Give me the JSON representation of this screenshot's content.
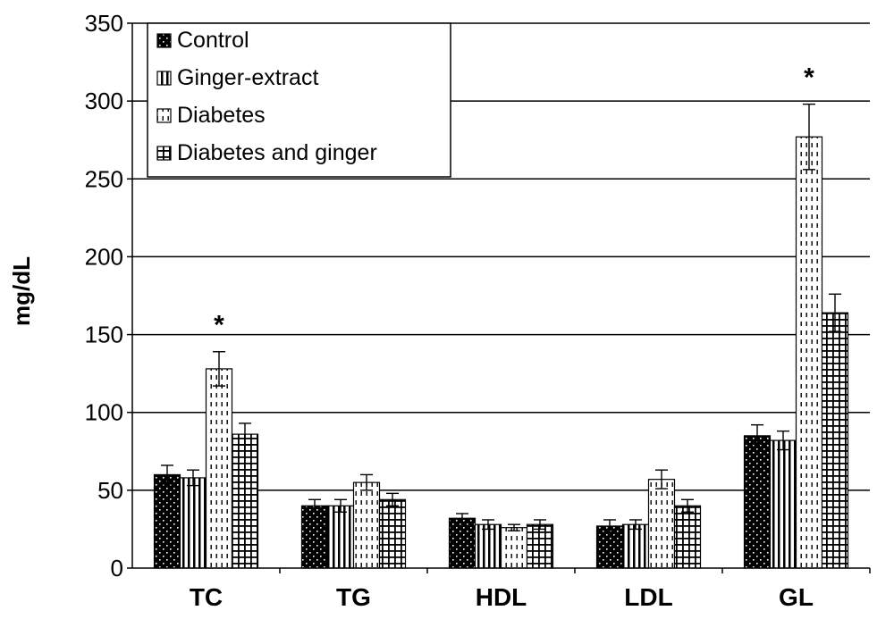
{
  "chart_data": {
    "type": "bar",
    "title": "",
    "xlabel": "",
    "ylabel": "mg/dL",
    "ylim": [
      0,
      350
    ],
    "yticks": [
      0,
      50,
      100,
      150,
      200,
      250,
      300,
      350
    ],
    "grid": true,
    "legend_position": "top-left",
    "categories": [
      "TC",
      "TG",
      "HDL",
      "LDL",
      "GL"
    ],
    "series": [
      {
        "name": "Control",
        "pattern": "dots-on-black",
        "values": [
          60,
          40,
          32,
          27,
          85
        ],
        "errors": [
          6,
          4,
          3,
          4,
          7
        ]
      },
      {
        "name": "Ginger-extract",
        "pattern": "vertical-lines",
        "values": [
          58,
          40,
          28,
          28,
          82
        ],
        "errors": [
          5,
          4,
          3,
          3,
          6
        ]
      },
      {
        "name": "Diabetes",
        "pattern": "dashes-on-white",
        "values": [
          128,
          55,
          26,
          57,
          277
        ],
        "errors": [
          11,
          5,
          2,
          6,
          21
        ]
      },
      {
        "name": "Diabetes and ginger",
        "pattern": "grid",
        "values": [
          86,
          44,
          28,
          40,
          164
        ],
        "errors": [
          7,
          4,
          3,
          4,
          12
        ]
      }
    ],
    "annotations": [
      {
        "text": "*",
        "category": "TC",
        "series": "Diabetes"
      },
      {
        "text": "*",
        "category": "GL",
        "series": "Diabetes"
      }
    ]
  },
  "colors": {
    "axis": "#000000",
    "bar_fill": "#000000",
    "background": "#ffffff"
  }
}
